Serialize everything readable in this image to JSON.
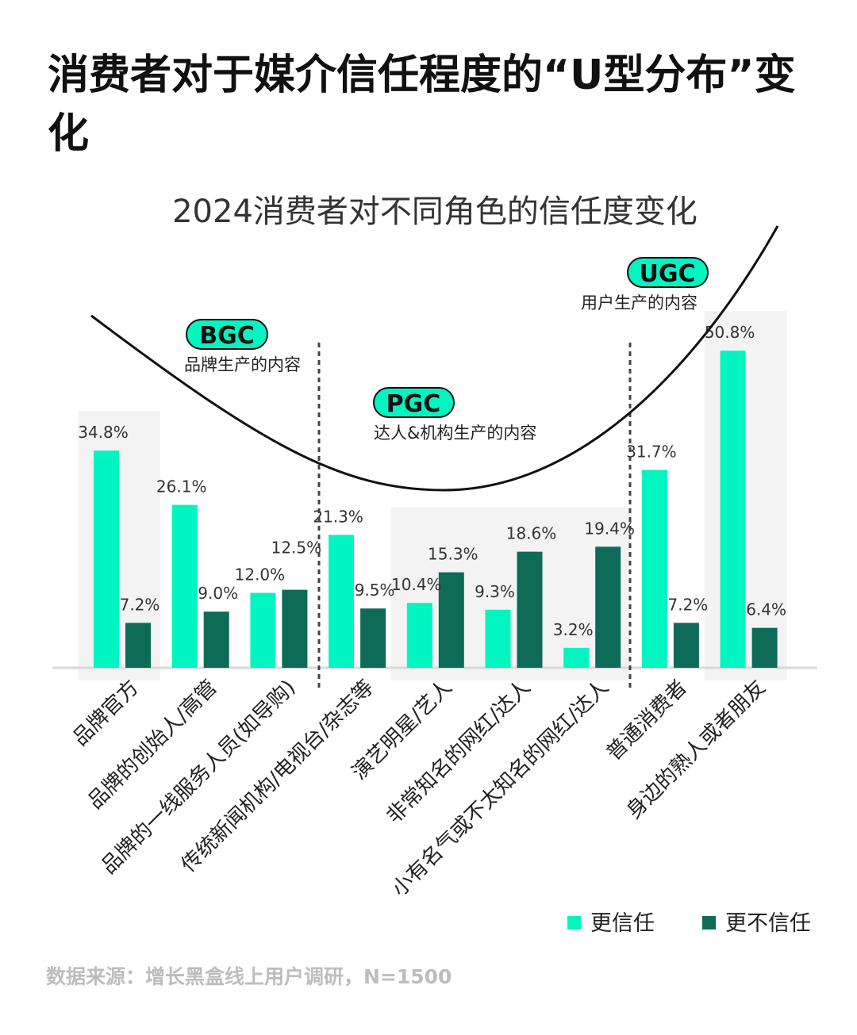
{
  "title": "消费者对于媒介信任程度的“U型分布”变化",
  "source": "数据来源：增长黑盒线上用户调研，N=1500",
  "colors": {
    "trust": "#00F5C0",
    "distrust": "#0D6B57",
    "highlight": "#F3F3F3",
    "axis": "#D9D9D9"
  },
  "annotations": [
    {
      "badge": "BGC",
      "text": "品牌生产的内容"
    },
    {
      "badge": "PGC",
      "text": "达人&机构生产的内容"
    },
    {
      "badge": "UGC",
      "text": "用户生产的内容"
    }
  ],
  "chart_data": {
    "type": "bar",
    "title": "2024消费者对不同角色的信任度变化",
    "categories": [
      "品牌官方",
      "品牌的创始人/高管",
      "品牌的一线服务人员(如导购)",
      "传统新闻机构/电视台/杂志等",
      "演艺明星/艺人",
      "非常知名的网红/达人",
      "小有名气或不太知名的网红/达人",
      "普通消费者",
      "身边的熟人或者朋友"
    ],
    "series": [
      {
        "name": "更信任",
        "values": [
          34.8,
          26.1,
          12.0,
          21.3,
          10.4,
          9.3,
          3.2,
          31.7,
          50.8
        ]
      },
      {
        "name": "更不信任",
        "values": [
          7.2,
          9.0,
          12.5,
          9.5,
          15.3,
          18.6,
          19.4,
          7.2,
          6.4
        ]
      }
    ],
    "value_format": "%",
    "ylim": [
      0,
      50.8
    ],
    "grid": false,
    "legend": "bottom-right",
    "groups": [
      {
        "badge": "BGC",
        "categories": [
          0,
          1,
          2
        ]
      },
      {
        "badge": "PGC",
        "categories": [
          3,
          4,
          5,
          6
        ]
      },
      {
        "badge": "UGC",
        "categories": [
          7,
          8
        ]
      }
    ],
    "highlighted_categories": [
      0,
      4,
      5,
      6,
      8
    ]
  }
}
